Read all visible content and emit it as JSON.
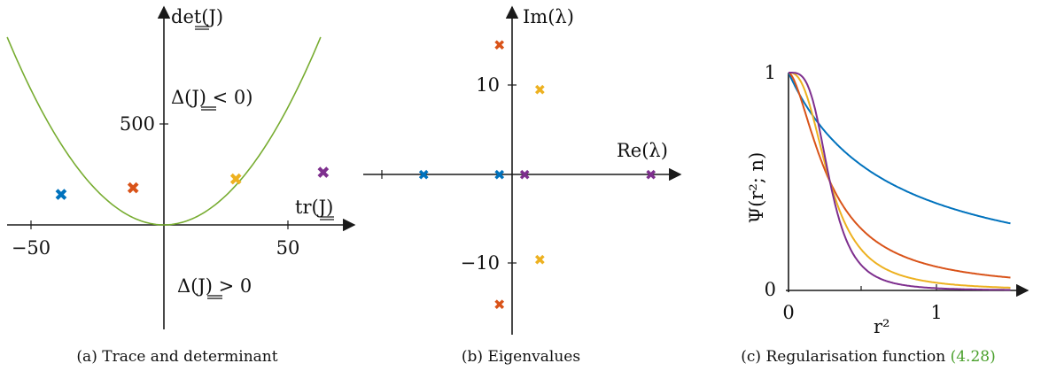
{
  "colors": {
    "blue": "#0072bd",
    "red": "#d95319",
    "yellow": "#edb120",
    "purple": "#7e2f8e",
    "green": "#77ac30",
    "axis": "#1a1a1a"
  },
  "marker": "✖",
  "chart_data": [
    {
      "type": "scatter",
      "caption": "(a) Trace and determinant",
      "xlabel": "tr(J)",
      "ylabel": "det(J)",
      "xlim": [
        -62,
        62
      ],
      "ylim": [
        -430,
        830
      ],
      "xticks": [
        -50,
        50
      ],
      "yticks": [
        500
      ],
      "xtick_labels": [
        "−50",
        "50"
      ],
      "ytick_labels": [
        "500"
      ],
      "curve": {
        "name": "Δ(J) = 0",
        "formula": "det = tr^2/4",
        "color": "#77ac30"
      },
      "annotations": [
        "Δ(J) < 0)",
        "Δ(J) > 0"
      ],
      "points": [
        {
          "x": -40,
          "y": 152,
          "color": "#0072bd"
        },
        {
          "x": -12,
          "y": 185,
          "color": "#d95319"
        },
        {
          "x": 28,
          "y": 228,
          "color": "#edb120"
        },
        {
          "x": 62,
          "y": 262,
          "color": "#7e2f8e"
        }
      ]
    },
    {
      "type": "scatter",
      "caption": "(b) Eigenvalues",
      "xlabel": "Re(λ)",
      "ylabel": "Im(λ)",
      "xlim": [
        -45,
        60
      ],
      "ylim": [
        -17,
        18
      ],
      "yticks": [
        10,
        -10
      ],
      "ytick_labels": [
        "10",
        "−10"
      ],
      "points": [
        {
          "x": -35,
          "y": 0,
          "color": "#0072bd"
        },
        {
          "x": -5,
          "y": 0,
          "color": "#0072bd"
        },
        {
          "x": -5,
          "y": 14.5,
          "color": "#d95319"
        },
        {
          "x": -5,
          "y": -14.5,
          "color": "#d95319"
        },
        {
          "x": 11,
          "y": 9.5,
          "color": "#edb120"
        },
        {
          "x": 11,
          "y": -9.5,
          "color": "#edb120"
        },
        {
          "x": 5,
          "y": 0,
          "color": "#7e2f8e"
        },
        {
          "x": 55,
          "y": 0,
          "color": "#7e2f8e"
        }
      ]
    },
    {
      "type": "line",
      "caption_text": "(c) Regularisation function ",
      "caption_ref": "(4.28)",
      "xlabel": "r²",
      "ylabel": "Ψ(r²; n)",
      "xlim": [
        0,
        1.5
      ],
      "ylim": [
        0,
        1
      ],
      "xticks": [
        0,
        1
      ],
      "xminor": [
        0.5
      ],
      "yticks": [
        0,
        1
      ],
      "xtick_labels": [
        "0",
        "1"
      ],
      "ytick_labels": [
        "0",
        "1"
      ],
      "series": [
        {
          "color": "#0072bd",
          "n": 1
        },
        {
          "color": "#d95319",
          "n": 2
        },
        {
          "color": "#edb120",
          "n": 3
        },
        {
          "color": "#7e2f8e",
          "n": 4
        }
      ]
    }
  ]
}
